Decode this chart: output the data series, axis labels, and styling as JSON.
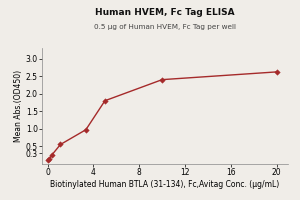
{
  "title": "Human HVEM, Fc Tag ELISA",
  "subtitle": "0.5 μg of Human HVEM, Fc Tag per well",
  "xlabel": "Biotinylated Human BTLA (31-134), Fc,Avitag Conc. (μg/mL)",
  "ylabel": "Mean Abs.(OD450)",
  "x_data": [
    0.041,
    0.123,
    0.37,
    1.111,
    3.333,
    5.0,
    10.0,
    20.0
  ],
  "y_data": [
    0.105,
    0.135,
    0.26,
    0.555,
    0.975,
    1.8,
    2.4,
    2.62
  ],
  "xlim": [
    -0.5,
    21
  ],
  "ylim": [
    0,
    3.3
  ],
  "yticks": [
    0.3,
    0.5,
    1.0,
    1.5,
    2.0,
    2.5,
    3.0
  ],
  "ytick_labels": [
    "0.3",
    "0.5",
    "1.0",
    "1.5",
    "2.0",
    "2.5",
    "3.0"
  ],
  "xticks": [
    0,
    4,
    8,
    12,
    16,
    20
  ],
  "color": "#A52A2A",
  "bg_color": "#f0ede8",
  "title_fontsize": 6.5,
  "subtitle_fontsize": 5.2,
  "label_fontsize": 5.5,
  "tick_fontsize": 5.5
}
